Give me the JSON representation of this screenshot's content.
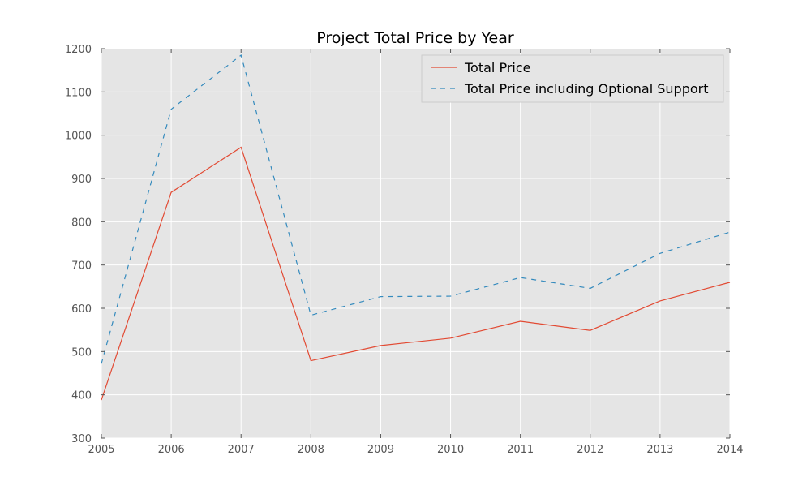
{
  "chart_data": {
    "type": "line",
    "title": "Project Total Price by Year",
    "xlabel": "",
    "ylabel": "",
    "x": [
      2005,
      2006,
      2007,
      2008,
      2009,
      2010,
      2011,
      2012,
      2013,
      2014
    ],
    "xlim": [
      2005,
      2014
    ],
    "ylim": [
      300,
      1200
    ],
    "x_ticks": [
      2005,
      2006,
      2007,
      2008,
      2009,
      2010,
      2011,
      2012,
      2013,
      2014
    ],
    "y_ticks": [
      300,
      400,
      500,
      600,
      700,
      800,
      900,
      1000,
      1100,
      1200
    ],
    "grid": true,
    "legend_position": "top-right",
    "background_color": "#e5e5e5",
    "grid_color": "#ffffff",
    "series": [
      {
        "name": "Total Price",
        "values": [
          388,
          868,
          972,
          479,
          514,
          531,
          570,
          549,
          617,
          660
        ],
        "color": "#e24a33",
        "dash": "solid"
      },
      {
        "name": "Total Price including Optional Support",
        "values": [
          472,
          1060,
          1185,
          584,
          627,
          628,
          671,
          646,
          727,
          776
        ],
        "color": "#348abd",
        "dash": "dashed"
      }
    ]
  }
}
